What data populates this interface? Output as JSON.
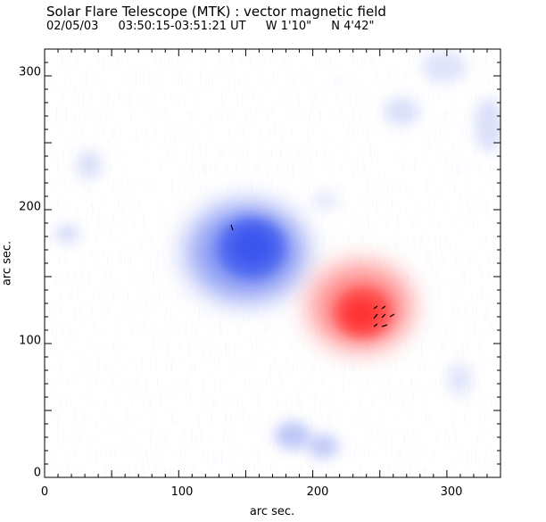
{
  "figure": {
    "title": "Solar Flare Telescope (MTK) : vector magnetic field",
    "date": "02/05/03",
    "time_range": "03:50:15-03:51:21 UT",
    "longitude": "W 1'10\"",
    "latitude": "N 4'42\"",
    "colors": {
      "negative_polarity": "#3a5cf0",
      "positive_polarity": "#ff3a3a",
      "background_noise": "#9aa8f0",
      "vector": "#000000"
    }
  },
  "axes": {
    "xlabel": "arc sec.",
    "ylabel": "arc sec.",
    "xlim": [
      0,
      340
    ],
    "ylim": [
      0,
      320
    ],
    "xticks": [
      "0",
      "100",
      "200",
      "300"
    ],
    "yticks": [
      "0",
      "100",
      "200",
      "300"
    ]
  }
}
